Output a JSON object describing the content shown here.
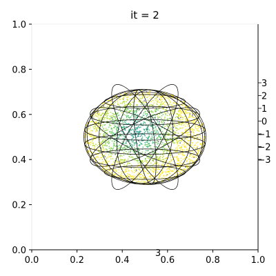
{
  "chart_data": {
    "type": "scatter",
    "title": "it = 2",
    "xlabel": "",
    "ylabel": "",
    "xlim": [
      0.0,
      1.0
    ],
    "ylim": [
      0.0,
      1.0
    ],
    "x_ticks": [
      "0.0",
      "0.2",
      "0.4",
      "0.6",
      "0.8",
      "1.0"
    ],
    "y_ticks": [
      "0.0",
      "0.2",
      "0.4",
      "0.6",
      "0.8",
      "1.0"
    ],
    "z_ticks": [
      "3",
      "2",
      "1",
      "0",
      "−1",
      "−2",
      "−3"
    ],
    "x_ticks_3d": [
      "3"
    ],
    "grid": false,
    "legend": "none",
    "wireframe_color": "#000000",
    "colormap": [
      "#1f9e89",
      "#35b779",
      "#6ece58",
      "#b5de2b",
      "#fde725"
    ],
    "sphere": {
      "center": [
        0.5,
        0.5
      ],
      "radius_x": 0.27,
      "radius_y": 0.21,
      "point_count": 2600
    },
    "description_hidden": "3D particle cloud rendered inside a wireframe sphere"
  }
}
